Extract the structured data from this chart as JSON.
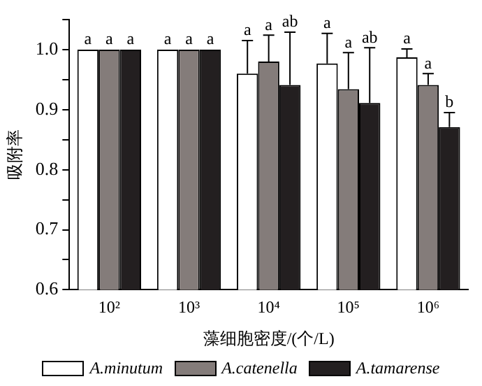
{
  "chart_data": {
    "type": "bar",
    "xlabel": "藻细胞密度/(个/L)",
    "ylabel": "吸附率",
    "categories": [
      "10²",
      "10³",
      "10⁴",
      "10⁵",
      "10⁶"
    ],
    "series": [
      {
        "name": "A.minutum",
        "color": "#ffffff",
        "values": [
          1.0,
          1.0,
          0.96,
          0.977,
          0.987
        ],
        "errors": [
          null,
          null,
          [
            0.96,
            1.015
          ],
          [
            0.977,
            1.027
          ],
          [
            0.987,
            1.001
          ]
        ]
      },
      {
        "name": "A.catenella",
        "color": "#847c7a",
        "values": [
          1.0,
          1.0,
          0.98,
          0.934,
          0.941
        ],
        "errors": [
          null,
          null,
          [
            0.98,
            1.024
          ],
          [
            0.934,
            0.995
          ],
          [
            0.941,
            0.96
          ]
        ]
      },
      {
        "name": "A.tamarense",
        "color": "#231f20",
        "values": [
          1.0,
          1.0,
          0.941,
          0.911,
          0.871
        ],
        "errors": [
          null,
          null,
          [
            0.941,
            1.029
          ],
          [
            0.911,
            1.003
          ],
          [
            0.871,
            0.895
          ]
        ]
      }
    ],
    "ylim": [
      0.6,
      1.05
    ],
    "yticks": [
      {
        "value": 0.6,
        "label": "0.6"
      },
      {
        "value": 0.65,
        "label": null
      },
      {
        "value": 0.7,
        "label": "0.7"
      },
      {
        "value": 0.75,
        "label": null
      },
      {
        "value": 0.8,
        "label": "0.8"
      },
      {
        "value": 0.85,
        "label": null
      },
      {
        "value": 0.9,
        "label": "0.9"
      },
      {
        "value": 0.95,
        "label": null
      },
      {
        "value": 1.0,
        "label": "1.0"
      },
      {
        "value": 1.05,
        "label": null
      }
    ],
    "annotations": [
      "a",
      "a",
      "a",
      "a",
      "a",
      "a",
      "a",
      "a",
      "ab",
      "a",
      "a",
      "ab",
      "a",
      "a",
      "b"
    ],
    "grid": false,
    "legend": "bottom"
  }
}
